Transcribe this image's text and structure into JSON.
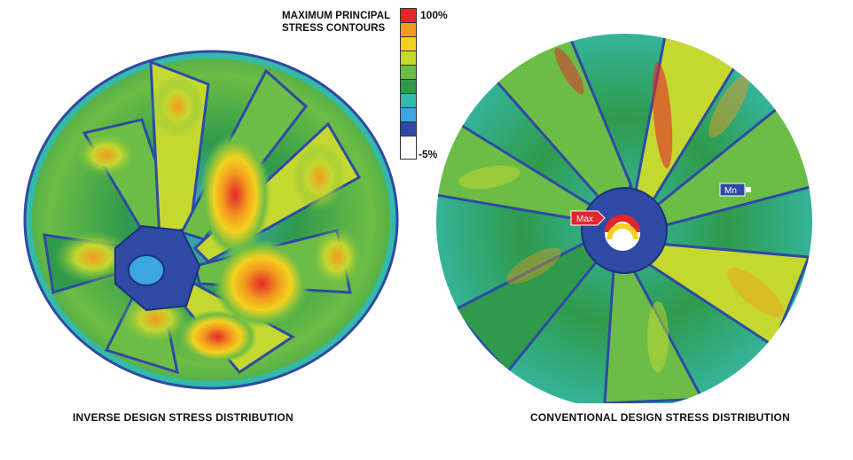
{
  "legend": {
    "title": "MAXIMUM PRINCIPAL STRESS CONTOURS",
    "max_label": "100%",
    "min_label": "-5%",
    "colors_top_to_bottom": [
      "#e3262c",
      "#f39a1e",
      "#f3d21f",
      "#c5d830",
      "#6cbd45",
      "#2f9a4b",
      "#35b9a9",
      "#3aa7e0",
      "#2e4aa5",
      "#ffffff"
    ]
  },
  "left_model": {
    "caption": "INVERSE DESIGN STRESS DISTRIBUTION"
  },
  "right_model": {
    "caption": "CONVENTIONAL DESIGN STRESS DISTRIBUTION",
    "max_tag": "Max",
    "min_tag": "Mn"
  }
}
